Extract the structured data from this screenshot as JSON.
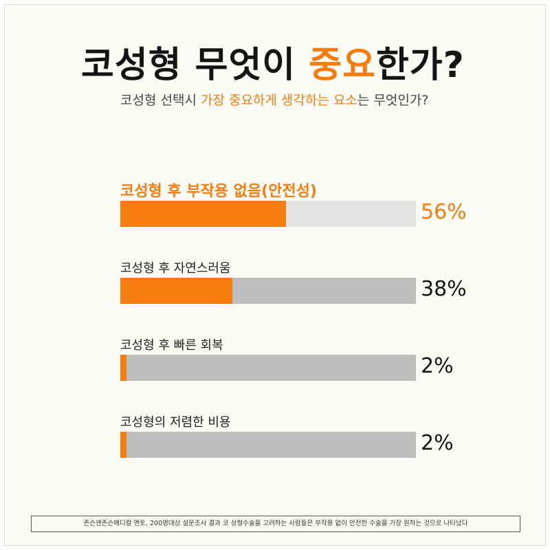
{
  "header": {
    "title_pre": "코성형 무엇이 ",
    "title_hl": "중요",
    "title_post": "한가?",
    "subtitle_pre": "코성형 선택시 ",
    "subtitle_hl": "가장 중요하게 생각하는 요소",
    "subtitle_post": "는 무엇인가?"
  },
  "chart_data": {
    "type": "bar",
    "orientation": "horizontal",
    "categories": [
      "코성형 후 부작용 없음(안전성)",
      "코성형 후 자연스러움",
      "코성형 후 빠른 회복",
      "코성형의 저렴한 비용"
    ],
    "values": [
      56,
      38,
      2,
      2
    ],
    "value_labels": [
      "56%",
      "38%",
      "2%",
      "2%"
    ],
    "xlim": [
      0,
      100
    ],
    "grid": false,
    "colors": {
      "fill": "#f57c0f",
      "track_highlight": "#e3e3e3",
      "track": "#bdbdbd"
    }
  },
  "footnote": "존슨앤존슨메디칼 멘토, 200명대상 설문조사 결과   코 성형수술을 고려하는 사람들은 부작용 없이 안전한 수술을 가장 원하는 것으로 나타났다"
}
